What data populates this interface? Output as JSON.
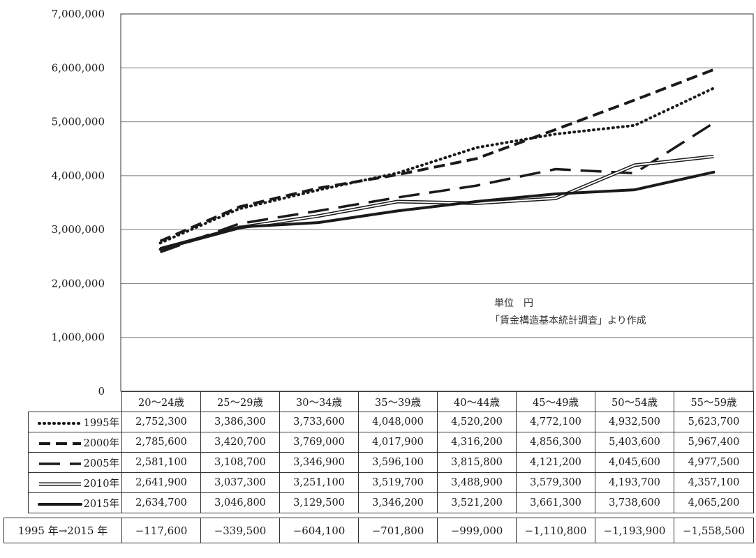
{
  "chart_data": {
    "type": "line",
    "categories": [
      "20〜24歳",
      "25〜29歳",
      "30〜34歳",
      "35〜39歳",
      "40〜44歳",
      "45〜49歳",
      "50〜54歳",
      "55〜59歳"
    ],
    "ylim": [
      0,
      7000000
    ],
    "yticks": [
      "0",
      "1,000,000",
      "2,000,000",
      "3,000,000",
      "4,000,000",
      "5,000,000",
      "6,000,000",
      "7,000,000"
    ],
    "grid": true,
    "annotations": [
      "単位　円",
      "「賃金構造基本統計調査」より作成"
    ],
    "series": [
      {
        "name": "1995年",
        "style": "dotted",
        "values": [
          2752300,
          3386300,
          3733600,
          4048000,
          4520200,
          4772100,
          4932500,
          5623700
        ],
        "labels": [
          "2,752,300",
          "3,386,300",
          "3,733,600",
          "4,048,000",
          "4,520,200",
          "4,772,100",
          "4,932,500",
          "5,623,700"
        ]
      },
      {
        "name": "2000年",
        "style": "dashed",
        "values": [
          2785600,
          3420700,
          3769000,
          4017900,
          4316200,
          4856300,
          5403600,
          5967400
        ],
        "labels": [
          "2,785,600",
          "3,420,700",
          "3,769,000",
          "4,017,900",
          "4,316,200",
          "4,856,300",
          "5,403,600",
          "5,967,400"
        ]
      },
      {
        "name": "2005年",
        "style": "long-dashed",
        "values": [
          2581100,
          3108700,
          3346900,
          3596100,
          3815800,
          4121200,
          4045600,
          4977500
        ],
        "labels": [
          "2,581,100",
          "3,108,700",
          "3,346,900",
          "3,596,100",
          "3,815,800",
          "4,121,200",
          "4,045,600",
          "4,977,500"
        ]
      },
      {
        "name": "2010年",
        "style": "double",
        "values": [
          2641900,
          3037300,
          3251100,
          3519700,
          3488900,
          3579300,
          4193700,
          4357100
        ],
        "labels": [
          "2,641,900",
          "3,037,300",
          "3,251,100",
          "3,519,700",
          "3,488,900",
          "3,579,300",
          "4,193,700",
          "4,357,100"
        ]
      },
      {
        "name": "2015年",
        "style": "solid-thick",
        "values": [
          2634700,
          3046800,
          3129500,
          3346200,
          3521200,
          3661300,
          3738600,
          4065200
        ],
        "labels": [
          "2,634,700",
          "3,046,800",
          "3,129,500",
          "3,346,200",
          "3,521,200",
          "3,661,300",
          "3,738,600",
          "4,065,200"
        ]
      }
    ],
    "difference_row": {
      "label": "1995 年→2015 年",
      "values": [
        "−117,600",
        "−339,500",
        "−604,100",
        "−701,800",
        "−999,000",
        "−1,110,800",
        "−1,193,900",
        "−1,558,500"
      ]
    }
  }
}
